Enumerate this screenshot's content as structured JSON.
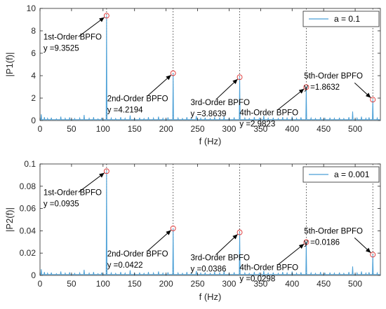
{
  "chart_data": [
    {
      "type": "line",
      "ylabel": "|P1(f)|",
      "xlabel": "f (Hz)",
      "xlim": [
        0,
        540
      ],
      "ylim": [
        0,
        10
      ],
      "xticks": [
        0,
        50,
        100,
        150,
        200,
        250,
        300,
        350,
        400,
        450,
        500
      ],
      "yticks": [
        0,
        2,
        4,
        6,
        8,
        10
      ],
      "grid": false,
      "legend_position": "top-right",
      "series": [
        {
          "name": "a = 0.1",
          "color": "#4a9fd6"
        }
      ],
      "bpfo_lines_x": [
        105.6,
        211.2,
        316.8,
        422.4,
        528.0
      ],
      "peaks": [
        {
          "x": 105.6,
          "y": 9.3525,
          "label": "1st-Order BPFO",
          "value_text": "y =9.3525"
        },
        {
          "x": 211.2,
          "y": 4.2194,
          "label": "2nd-Order BPFO",
          "value_text": "y =4.2194"
        },
        {
          "x": 316.8,
          "y": 3.8639,
          "label": "3rd-Order BPFO",
          "value_text": "y =3.8639"
        },
        {
          "x": 422.4,
          "y": 2.9823,
          "label": "4th-Order BPFO",
          "value_text": "y =2.9823"
        },
        {
          "x": 528.0,
          "y": 1.8632,
          "label": "5th-Order BPFO",
          "value_text": "y =1.8632"
        }
      ],
      "minor_peaks": [
        [
          2,
          0.55
        ],
        [
          7,
          0.3
        ],
        [
          12,
          0.2
        ],
        [
          18,
          0.25
        ],
        [
          26,
          0.15
        ],
        [
          33,
          0.35
        ],
        [
          40,
          0.2
        ],
        [
          47,
          0.28
        ],
        [
          55,
          0.18
        ],
        [
          63,
          0.22
        ],
        [
          70,
          0.5
        ],
        [
          78,
          0.2
        ],
        [
          85,
          0.3
        ],
        [
          92,
          0.15
        ],
        [
          98,
          0.25
        ],
        [
          113,
          0.22
        ],
        [
          120,
          0.18
        ],
        [
          128,
          0.3
        ],
        [
          135,
          0.2
        ],
        [
          143,
          0.45
        ],
        [
          150,
          0.2
        ],
        [
          158,
          0.25
        ],
        [
          165,
          0.18
        ],
        [
          172,
          0.3
        ],
        [
          180,
          0.22
        ],
        [
          188,
          0.35
        ],
        [
          195,
          0.2
        ],
        [
          203,
          0.28
        ],
        [
          219,
          0.22
        ],
        [
          226,
          0.18
        ],
        [
          233,
          0.3
        ],
        [
          240,
          0.2
        ],
        [
          248,
          0.4
        ],
        [
          255,
          0.2
        ],
        [
          262,
          0.25
        ],
        [
          270,
          0.18
        ],
        [
          277,
          0.3
        ],
        [
          285,
          0.22
        ],
        [
          292,
          0.35
        ],
        [
          300,
          0.2
        ],
        [
          308,
          0.28
        ],
        [
          325,
          0.22
        ],
        [
          332,
          0.18
        ],
        [
          340,
          0.3
        ],
        [
          348,
          0.2
        ],
        [
          355,
          0.4
        ],
        [
          362,
          0.2
        ],
        [
          370,
          0.25
        ],
        [
          378,
          0.18
        ],
        [
          385,
          0.3
        ],
        [
          392,
          0.22
        ],
        [
          400,
          0.35
        ],
        [
          407,
          0.2
        ],
        [
          414,
          0.28
        ],
        [
          430,
          0.22
        ],
        [
          437,
          0.18
        ],
        [
          445,
          0.3
        ],
        [
          452,
          0.2
        ],
        [
          460,
          0.25
        ],
        [
          467,
          0.2
        ],
        [
          475,
          0.25
        ],
        [
          482,
          0.18
        ],
        [
          490,
          0.3
        ],
        [
          496,
          0.8
        ],
        [
          503,
          0.22
        ],
        [
          510,
          0.35
        ],
        [
          517,
          0.2
        ],
        [
          522,
          0.28
        ],
        [
          535,
          0.22
        ]
      ]
    },
    {
      "type": "line",
      "ylabel": "|P2(f)|",
      "xlabel": "f (Hz)",
      "xlim": [
        0,
        540
      ],
      "ylim": [
        0,
        0.1
      ],
      "xticks": [
        0,
        50,
        100,
        150,
        200,
        250,
        300,
        350,
        400,
        450,
        500
      ],
      "yticks": [
        0,
        0.02,
        0.04,
        0.06,
        0.08,
        0.1
      ],
      "grid": false,
      "legend_position": "top-right",
      "series": [
        {
          "name": "a = 0.001",
          "color": "#4a9fd6"
        }
      ],
      "bpfo_lines_x": [
        105.6,
        211.2,
        316.8,
        422.4,
        528.0
      ],
      "peaks": [
        {
          "x": 105.6,
          "y": 0.0935,
          "label": "1st-Order BPFO",
          "value_text": "y =0.0935"
        },
        {
          "x": 211.2,
          "y": 0.0422,
          "label": "2nd-Order BPFO",
          "value_text": "y =0.0422"
        },
        {
          "x": 316.8,
          "y": 0.0386,
          "label": "3rd-Order BPFO",
          "value_text": "y =0.0386"
        },
        {
          "x": 422.4,
          "y": 0.0298,
          "label": "4th-Order BPFO",
          "value_text": "y =0.0298"
        },
        {
          "x": 528.0,
          "y": 0.0186,
          "label": "5th-Order BPFO",
          "value_text": "y =0.0186"
        }
      ],
      "minor_peaks": [
        [
          2,
          0.0055
        ],
        [
          7,
          0.003
        ],
        [
          12,
          0.002
        ],
        [
          18,
          0.0025
        ],
        [
          26,
          0.0015
        ],
        [
          33,
          0.0035
        ],
        [
          40,
          0.002
        ],
        [
          47,
          0.0028
        ],
        [
          55,
          0.0018
        ],
        [
          63,
          0.0022
        ],
        [
          70,
          0.005
        ],
        [
          78,
          0.002
        ],
        [
          85,
          0.003
        ],
        [
          92,
          0.0015
        ],
        [
          98,
          0.0025
        ],
        [
          113,
          0.0022
        ],
        [
          120,
          0.0018
        ],
        [
          128,
          0.003
        ],
        [
          135,
          0.002
        ],
        [
          143,
          0.0045
        ],
        [
          150,
          0.002
        ],
        [
          158,
          0.0025
        ],
        [
          165,
          0.0018
        ],
        [
          172,
          0.003
        ],
        [
          180,
          0.0022
        ],
        [
          188,
          0.0035
        ],
        [
          195,
          0.002
        ],
        [
          203,
          0.0028
        ],
        [
          219,
          0.0022
        ],
        [
          226,
          0.0018
        ],
        [
          233,
          0.003
        ],
        [
          240,
          0.002
        ],
        [
          248,
          0.004
        ],
        [
          255,
          0.002
        ],
        [
          262,
          0.0025
        ],
        [
          270,
          0.0018
        ],
        [
          277,
          0.003
        ],
        [
          285,
          0.0022
        ],
        [
          292,
          0.0035
        ],
        [
          300,
          0.002
        ],
        [
          308,
          0.0028
        ],
        [
          325,
          0.0022
        ],
        [
          332,
          0.0018
        ],
        [
          340,
          0.003
        ],
        [
          348,
          0.002
        ],
        [
          355,
          0.004
        ],
        [
          362,
          0.002
        ],
        [
          370,
          0.0025
        ],
        [
          378,
          0.0018
        ],
        [
          385,
          0.003
        ],
        [
          392,
          0.0022
        ],
        [
          400,
          0.0035
        ],
        [
          407,
          0.002
        ],
        [
          414,
          0.0028
        ],
        [
          430,
          0.0022
        ],
        [
          437,
          0.0018
        ],
        [
          445,
          0.003
        ],
        [
          452,
          0.002
        ],
        [
          460,
          0.0025
        ],
        [
          467,
          0.002
        ],
        [
          475,
          0.0025
        ],
        [
          482,
          0.0018
        ],
        [
          490,
          0.003
        ],
        [
          496,
          0.008
        ],
        [
          503,
          0.0022
        ],
        [
          510,
          0.0035
        ],
        [
          517,
          0.002
        ],
        [
          522,
          0.0028
        ],
        [
          535,
          0.0022
        ]
      ]
    }
  ]
}
